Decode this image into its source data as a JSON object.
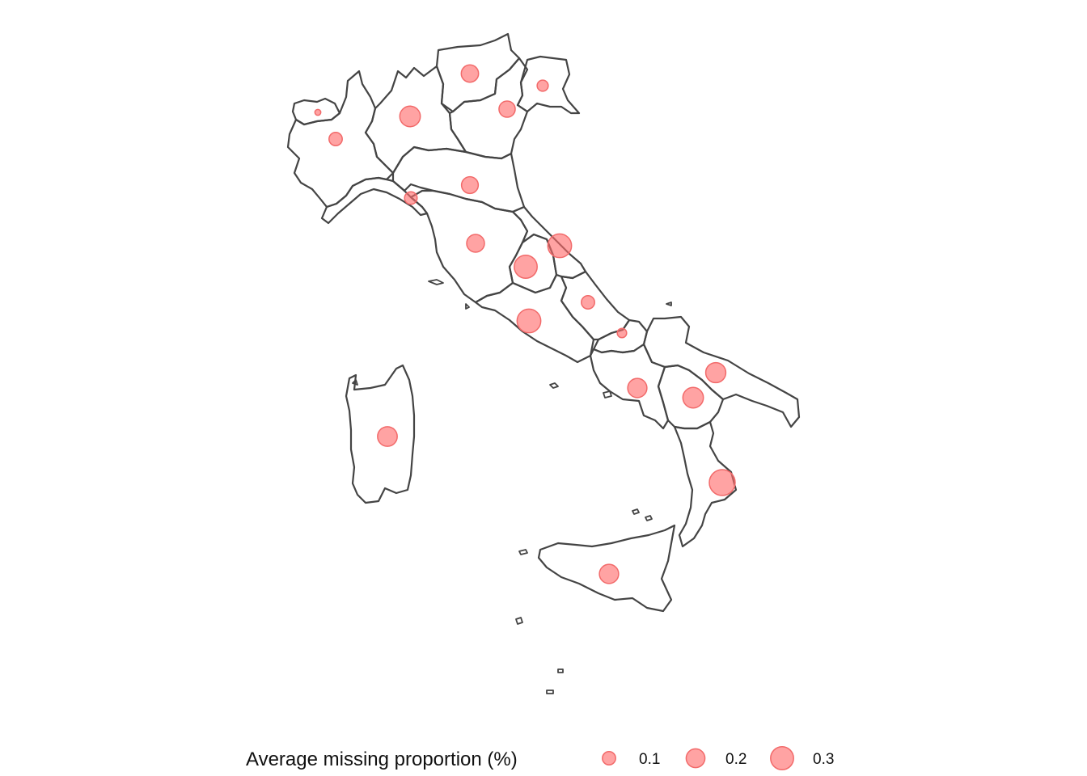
{
  "legend": {
    "title": "Average missing proportion (%)",
    "keys": [
      {
        "label": "0.1",
        "value": 0.1
      },
      {
        "label": "0.2",
        "value": 0.2
      },
      {
        "label": "0.3",
        "value": 0.3
      }
    ]
  },
  "colors": {
    "bubble_fill": "#ff6b6b",
    "bubble_stroke": "#f26a6a",
    "border": "#444444",
    "background": "#ffffff"
  },
  "regions": [
    {
      "id": "valle-d-aosta",
      "value": 0.02
    },
    {
      "id": "piemonte",
      "value": 0.1
    },
    {
      "id": "lombardia",
      "value": 0.24
    },
    {
      "id": "trentino-alto-adige",
      "value": 0.17
    },
    {
      "id": "veneto",
      "value": 0.15
    },
    {
      "id": "friuli-venezia-giulia",
      "value": 0.07
    },
    {
      "id": "liguria",
      "value": 0.09
    },
    {
      "id": "emilia-romagna",
      "value": 0.16
    },
    {
      "id": "toscana",
      "value": 0.18
    },
    {
      "id": "umbria",
      "value": 0.3
    },
    {
      "id": "marche",
      "value": 0.32
    },
    {
      "id": "lazio",
      "value": 0.32
    },
    {
      "id": "abruzzo",
      "value": 0.1
    },
    {
      "id": "molise",
      "value": 0.05
    },
    {
      "id": "campania",
      "value": 0.21
    },
    {
      "id": "puglia",
      "value": 0.23
    },
    {
      "id": "basilicata",
      "value": 0.24
    },
    {
      "id": "calabria",
      "value": 0.38
    },
    {
      "id": "sicilia",
      "value": 0.21
    },
    {
      "id": "sardegna",
      "value": 0.22
    }
  ]
}
